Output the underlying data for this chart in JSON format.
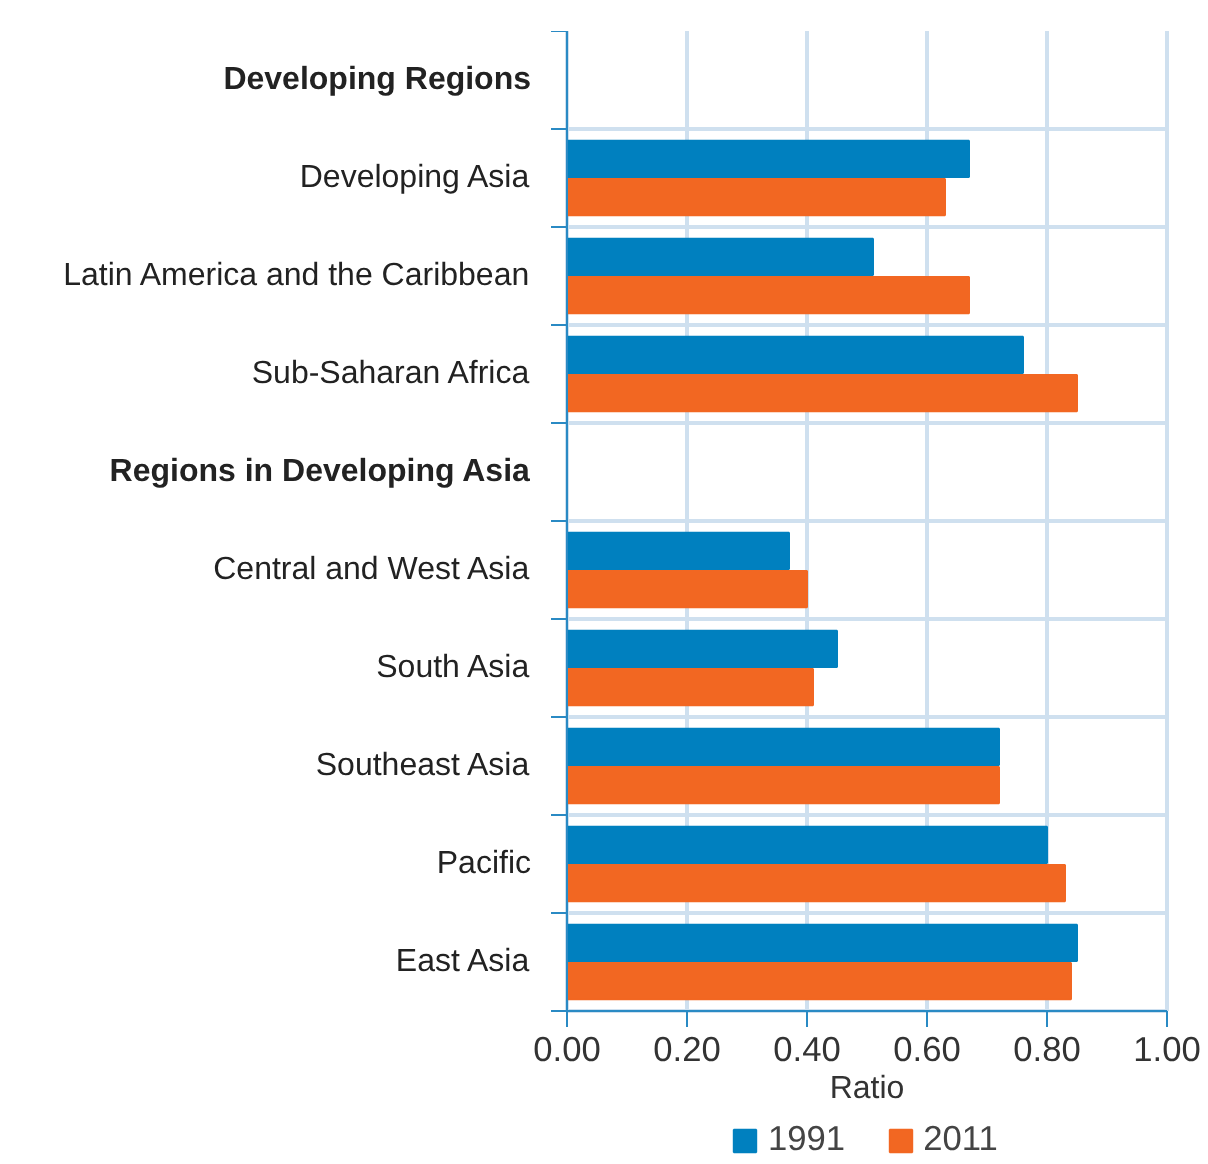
{
  "chart_data": {
    "type": "bar",
    "orientation": "horizontal",
    "xlabel": "Ratio",
    "categories": [
      "Developing Regions",
      "Developing Asia",
      "Latin America and the Caribbean",
      "Sub-Saharan Africa",
      "Regions in Developing Asia",
      "Central and West Asia",
      "South Asia",
      "Southeast Asia",
      "Pacific",
      "East Asia"
    ],
    "series": [
      {
        "name": "1991",
        "color": "#0080bf",
        "values": [
          null,
          0.67,
          0.51,
          0.76,
          null,
          0.37,
          0.45,
          0.72,
          0.8,
          0.85
        ]
      },
      {
        "name": "2011",
        "color": "#f26722",
        "values": [
          null,
          0.63,
          0.67,
          0.85,
          null,
          0.4,
          0.41,
          0.72,
          0.83,
          0.84
        ]
      }
    ],
    "xlim": [
      0,
      1
    ],
    "xticks": [
      {
        "value": 0,
        "label": "0.00"
      },
      {
        "value": 0.2,
        "label": "0.20"
      },
      {
        "value": 0.4,
        "label": "0.40"
      },
      {
        "value": 0.6,
        "label": "0.60"
      },
      {
        "value": 0.8,
        "label": "0.80"
      },
      {
        "value": 1,
        "label": "1.00"
      }
    ],
    "grid": true,
    "legend": "bottom"
  }
}
